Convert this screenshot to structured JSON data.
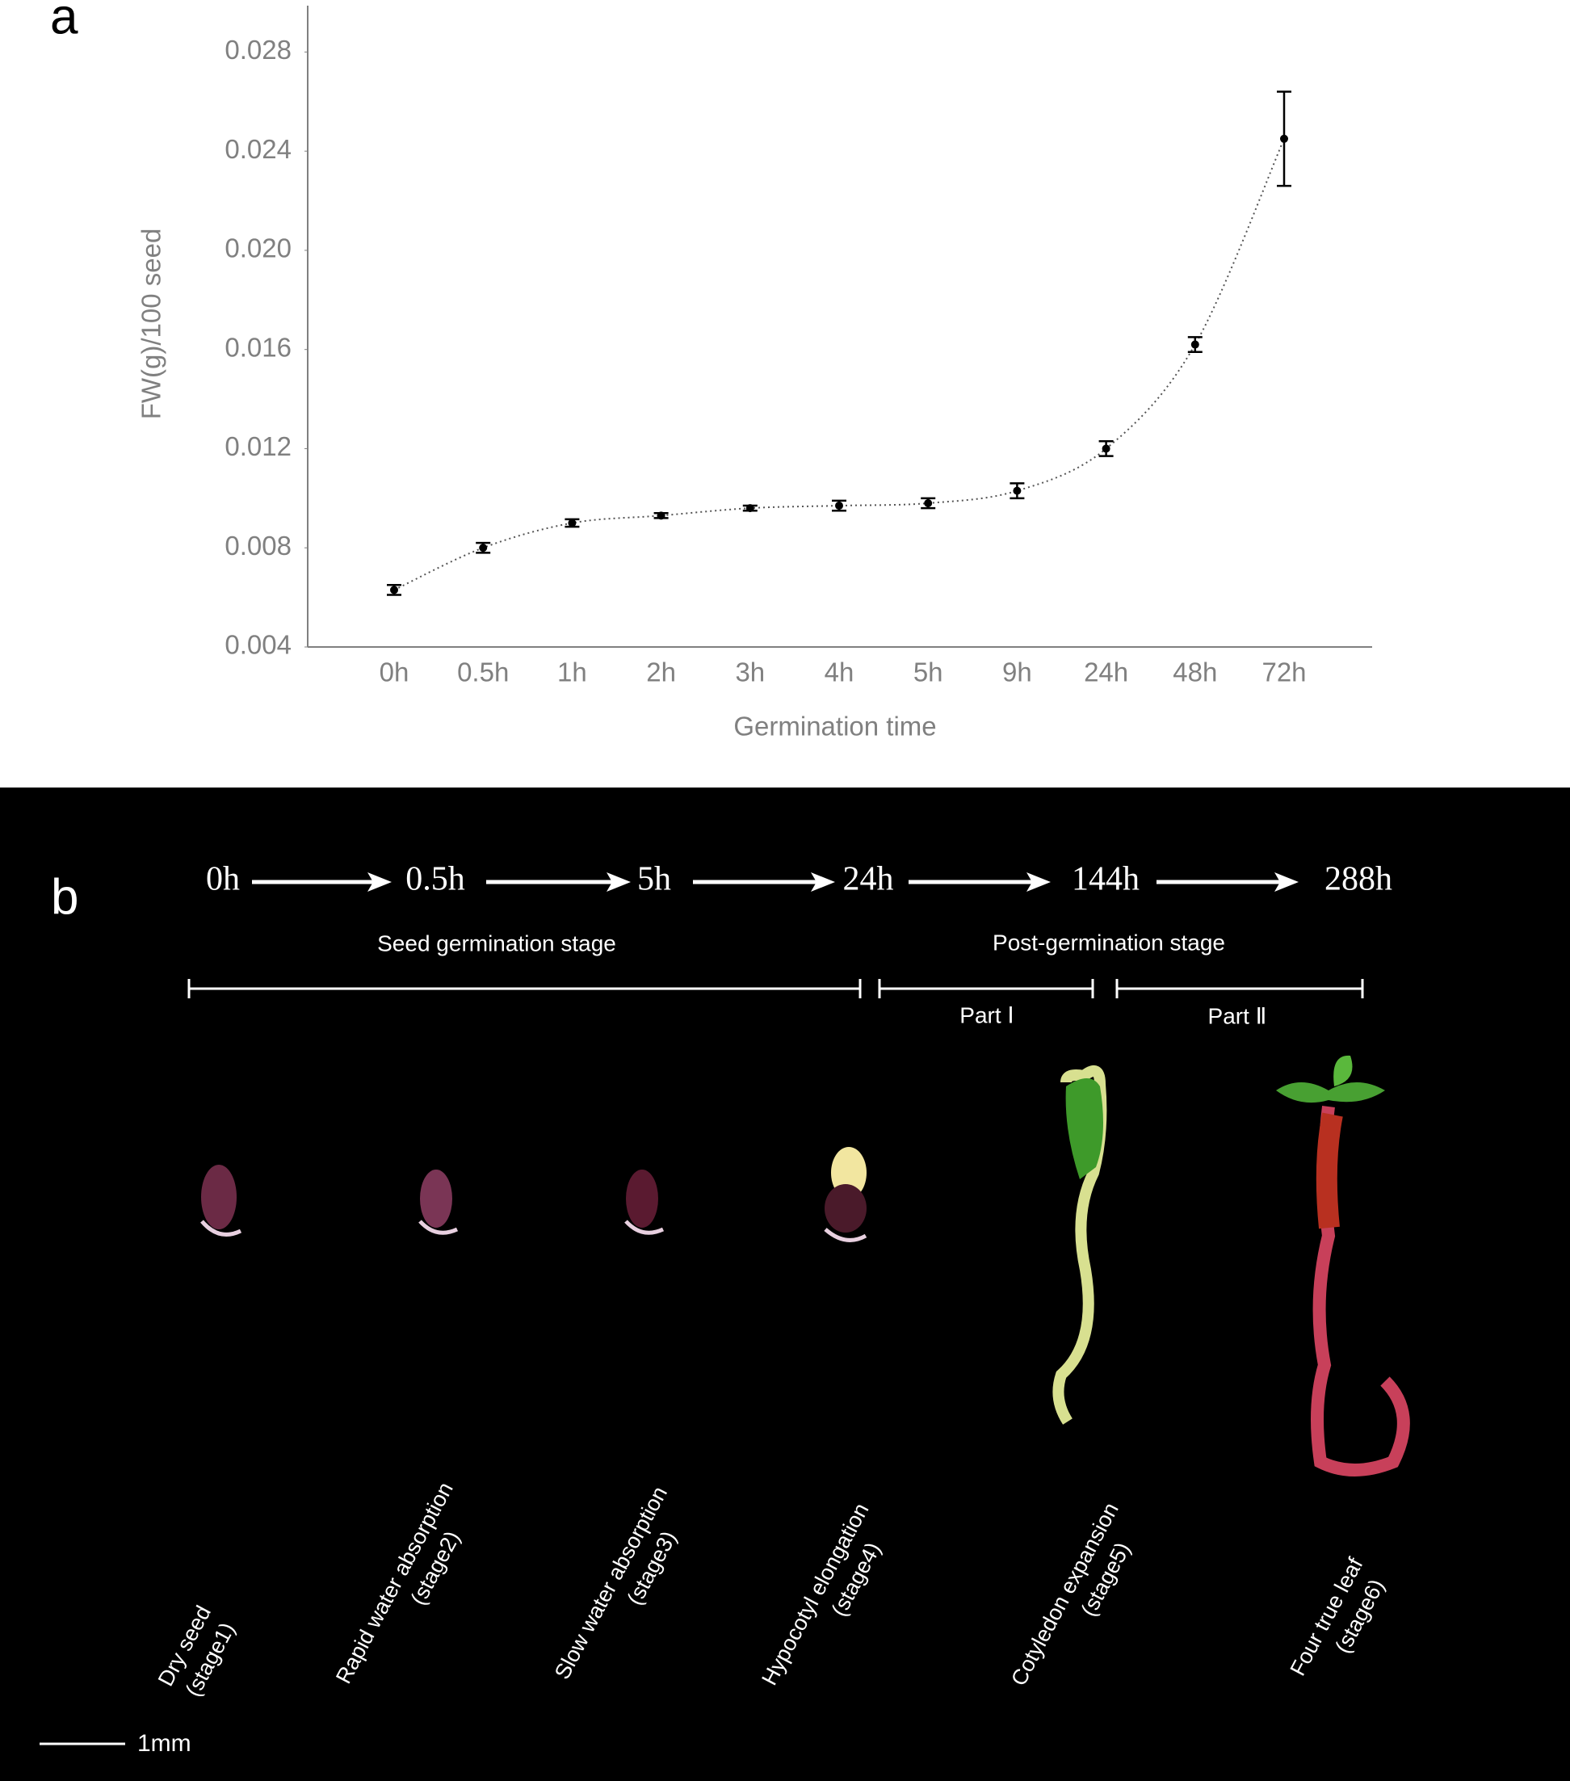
{
  "panel_a": {
    "label": "a"
  },
  "chart_data": {
    "type": "line",
    "xlabel": "Germination time",
    "ylabel": "FW(g)/100 seed",
    "categories": [
      "0h",
      "0.5h",
      "1h",
      "2h",
      "3h",
      "4h",
      "5h",
      "9h",
      "24h",
      "48h",
      "72h"
    ],
    "values": [
      0.0063,
      0.008,
      0.009,
      0.0093,
      0.0096,
      0.0097,
      0.0098,
      0.0103,
      0.012,
      0.0162,
      0.0245
    ],
    "errors": [
      0.0002,
      0.0002,
      0.00015,
      0.0001,
      0.0001,
      0.0002,
      0.0002,
      0.0003,
      0.0003,
      0.0003,
      0.0019
    ],
    "color": "#000000",
    "line_style": "dotted",
    "ylim": [
      0.004,
      0.03
    ],
    "yticks": [
      0.004,
      0.008,
      0.012,
      0.016,
      {
        "value": 0.02,
        "label": "0.020"
      },
      0.024,
      0.028
    ],
    "grid": false
  },
  "panel_b": {
    "label": "b",
    "times": [
      "0h",
      "0.5h",
      "5h",
      "24h",
      "144h",
      "288h"
    ],
    "stage_groups": [
      "Seed germination stage",
      "Post-germination stage"
    ],
    "parts": [
      "Part Ⅰ",
      "Part Ⅱ"
    ],
    "stages": [
      {
        "name": "Dry seed",
        "sub": "(stage1)"
      },
      {
        "name": "Rapid water absorption",
        "sub": "(stage2)"
      },
      {
        "name": "Slow water absorption",
        "sub": "(stage3)"
      },
      {
        "name": "Hypocotyl elongation",
        "sub": "(stage4)"
      },
      {
        "name": "Cotyledon expansion",
        "sub": "(stage5)"
      },
      {
        "name": "Four true leaf",
        "sub": "(stage6)"
      }
    ],
    "scale_bar": "1mm"
  }
}
